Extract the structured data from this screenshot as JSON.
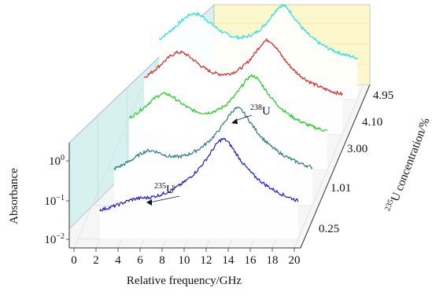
{
  "chart_data": {
    "type": "line",
    "style": "3d-waterfall",
    "xlabel": "Relative frequency/GHz",
    "ylabel": "Absorbance",
    "zlabel_sup": "235",
    "zlabel_rest": "U concentration/%",
    "x_ticks": [
      "0",
      "2",
      "4",
      "6",
      "8",
      "10",
      "12",
      "14",
      "16",
      "18",
      "20"
    ],
    "x_range": [
      0,
      20
    ],
    "y_scale": "log",
    "y_ticks": [
      {
        "base": "10",
        "exp": "0"
      },
      {
        "base": "10",
        "exp": "−1"
      },
      {
        "base": "10",
        "exp": "−2"
      }
    ],
    "z_ticks": [
      "0.25",
      "1.01",
      "3.00",
      "4.10",
      "4.95"
    ],
    "grid": true,
    "annotations": [
      {
        "sup": "235",
        "text": "U",
        "x_ghz": 5.2
      },
      {
        "sup": "238",
        "text": "U",
        "x_ghz": 13.2
      }
    ],
    "series": [
      {
        "concentration": "0.25",
        "color": "#1a1ad6",
        "peak_235_ghz": 5.2,
        "peak_235_abs": 0.025,
        "peak_238_ghz": 13.2,
        "peak_238_abs": 1.4,
        "baseline_abs": 0.011
      },
      {
        "concentration": "1.01",
        "color": "#2a7a80",
        "peak_235_ghz": 5.2,
        "peak_235_abs": 0.09,
        "peak_238_ghz": 13.2,
        "peak_238_abs": 1.2,
        "baseline_abs": 0.014
      },
      {
        "concentration": "3.00",
        "color": "#22cc22",
        "peak_235_ghz": 5.2,
        "peak_235_abs": 0.35,
        "peak_238_ghz": 13.2,
        "peak_238_abs": 1.0,
        "baseline_abs": 0.018
      },
      {
        "concentration": "4.10",
        "color": "#e02020",
        "peak_235_ghz": 5.2,
        "peak_235_abs": 0.5,
        "peak_238_ghz": 13.2,
        "peak_238_abs": 1.0,
        "baseline_abs": 0.02
      },
      {
        "concentration": "4.95",
        "color": "#22e0e0",
        "peak_235_ghz": 5.2,
        "peak_235_abs": 0.6,
        "peak_238_ghz": 13.2,
        "peak_238_abs": 0.95,
        "baseline_abs": 0.022
      }
    ]
  }
}
